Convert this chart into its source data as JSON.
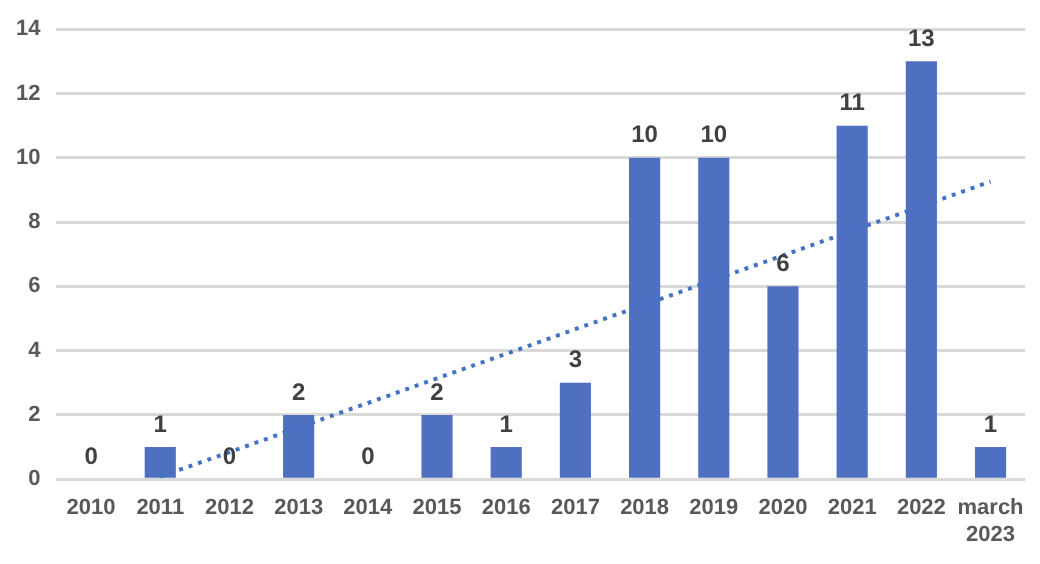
{
  "chart_data": {
    "type": "bar",
    "categories": [
      "2010",
      "2011",
      "2012",
      "2013",
      "2014",
      "2015",
      "2016",
      "2017",
      "2018",
      "2019",
      "2020",
      "2021",
      "2022",
      "march 2023"
    ],
    "series": [
      {
        "color": "#4f6fc1",
        "values": [
          0,
          1,
          0,
          2,
          0,
          2,
          1,
          3,
          10,
          10,
          6,
          11,
          13,
          1
        ],
        "value_labels": [
          "0",
          "1",
          "0",
          "2",
          "0",
          "2",
          "1",
          "3",
          "10",
          "10",
          "6",
          "11",
          "13",
          "1"
        ]
      },
      {
        "type": "line",
        "color": "#4472c4",
        "line_style": "dotted",
        "marker": "none",
        "values": [
          null,
          0.08,
          0.84,
          1.61,
          2.37,
          3.14,
          3.9,
          4.67,
          5.43,
          6.2,
          6.96,
          7.73,
          8.49,
          9.26
        ]
      }
    ],
    "ylim": [
      0,
      14
    ],
    "yticks": [
      0,
      2,
      4,
      6,
      8,
      10,
      12,
      14
    ],
    "grid": "y",
    "legend": false
  }
}
